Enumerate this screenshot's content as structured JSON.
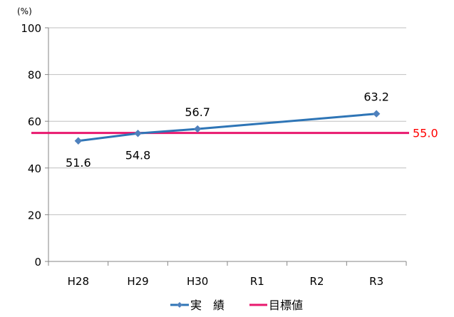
{
  "chart_data": {
    "type": "line",
    "title": "",
    "xlabel": "",
    "ylabel": "",
    "unit": "(%)",
    "categories": [
      "H28",
      "H29",
      "H30",
      "R1",
      "R2",
      "R3"
    ],
    "ylim": [
      0,
      100
    ],
    "yticks": [
      0,
      20,
      40,
      60,
      80,
      100
    ],
    "ytick_labels": [
      "0",
      "20",
      "40",
      "60",
      "80",
      "100"
    ],
    "grid": true,
    "legend": "bottom",
    "series": [
      {
        "name": "実　績",
        "color": "#2E75B6",
        "marker": "diamond",
        "values": [
          51.6,
          54.8,
          56.7,
          null,
          null,
          63.2
        ],
        "labels": [
          "51.6",
          "54.8",
          "56.7",
          "",
          "",
          "63.2"
        ]
      }
    ],
    "target": {
      "name": "目標値",
      "value": 55.0,
      "label": "55.0",
      "color": "#E8186E",
      "label_color": "#FF0000"
    }
  }
}
